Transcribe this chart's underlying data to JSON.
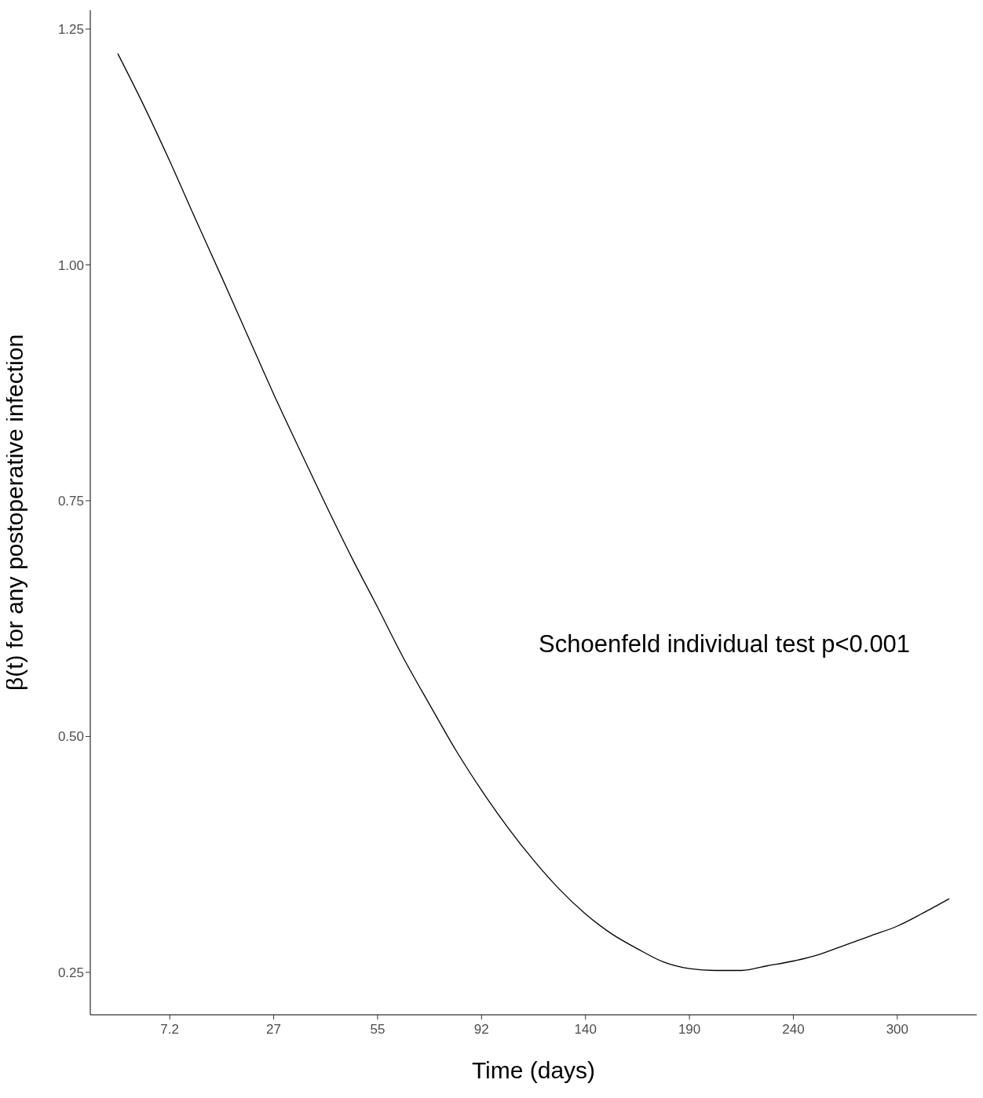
{
  "chart_data": {
    "type": "line",
    "xlabel": "Time (days)",
    "ylabel": "β(t) for any postoperative infection",
    "categories": [
      null,
      null,
      "7.2",
      null,
      null,
      null,
      "27",
      null,
      null,
      null,
      "55",
      null,
      null,
      null,
      "92",
      null,
      null,
      null,
      "140",
      null,
      null,
      null,
      "190",
      null,
      null,
      null,
      "240",
      null,
      null,
      null,
      "300",
      null,
      null
    ],
    "series": [
      {
        "color": "#000000",
        "values": [
          1.224,
          1.169,
          1.11,
          1.048,
          0.987,
          0.925,
          0.863,
          0.804,
          0.746,
          0.69,
          0.637,
          0.583,
          0.534,
          0.486,
          0.443,
          0.404,
          0.369,
          0.338,
          0.312,
          0.291,
          0.275,
          0.261,
          0.254,
          0.252,
          0.252,
          0.257,
          0.262,
          0.269,
          0.279,
          0.289,
          0.299,
          0.313,
          0.328
        ]
      }
    ],
    "ylim": [
      0.205,
      1.27
    ],
    "yticks": [
      {
        "value": 0.25,
        "label": "0.25"
      },
      {
        "value": 0.5,
        "label": "0.50"
      },
      {
        "value": 0.75,
        "label": "0.75"
      },
      {
        "value": 1,
        "label": "1.00"
      },
      {
        "value": 1.25,
        "label": "1.25"
      }
    ],
    "grid": false,
    "legend": false,
    "marker": "none",
    "line_style": "solid",
    "annotations": [
      "Schoenfeld individual test p<0.001"
    ]
  }
}
